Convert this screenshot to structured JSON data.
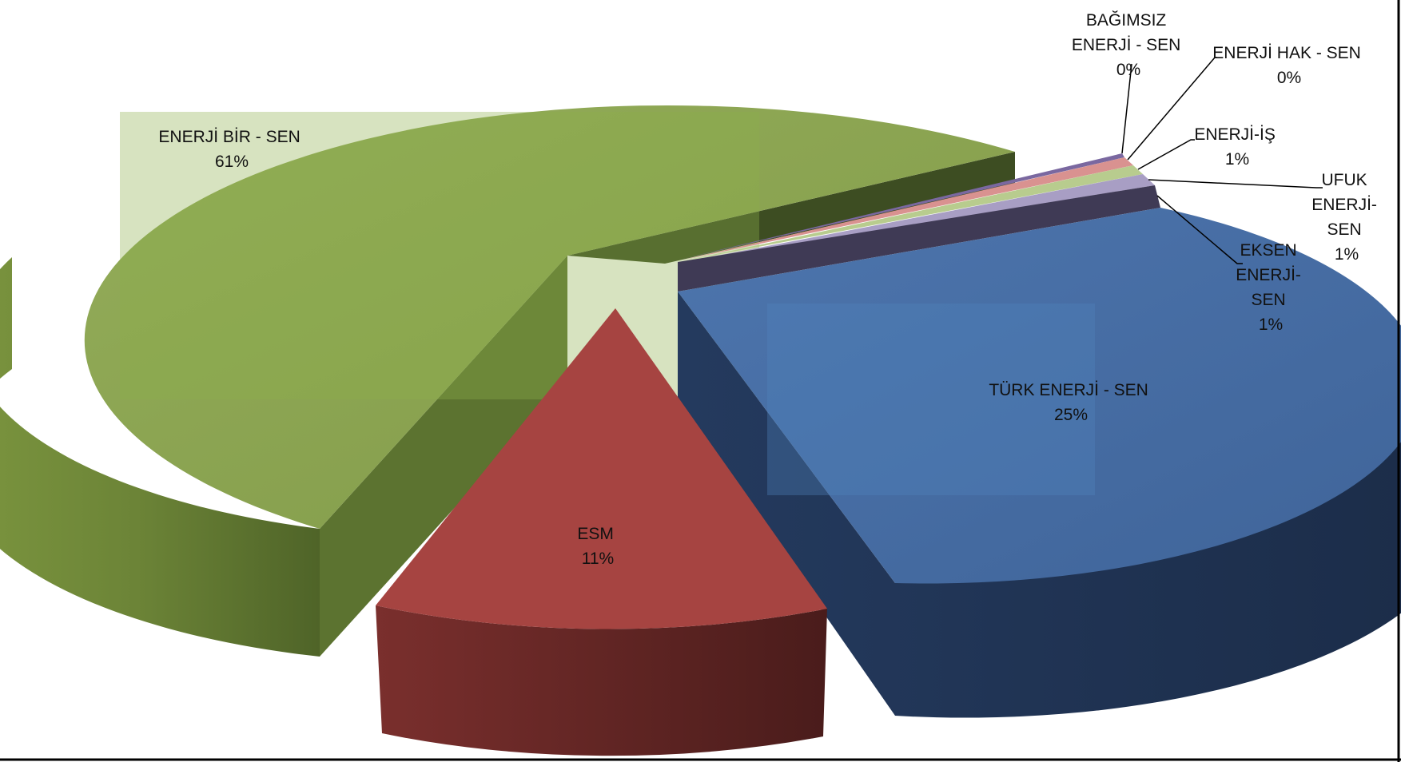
{
  "chart_data": {
    "type": "pie",
    "style": "3d-exploded",
    "slices": [
      {
        "label": "ENERJİ BİR - SEN",
        "percent_label": "61%",
        "value": 61,
        "color": "#8aa34f"
      },
      {
        "label": "ESM",
        "percent_label": "11%",
        "value": 11,
        "color": "#a64441"
      },
      {
        "label": "TÜRK ENERJİ - SEN",
        "percent_label": "25%",
        "value": 25,
        "color": "#4a70a8"
      },
      {
        "label": "EKSEN ENERJİ-SEN",
        "percent_label": "1%",
        "value": 1,
        "color": "#3f3a55"
      },
      {
        "label": "UFUK ENERJİ-SEN",
        "percent_label": "1%",
        "value": 1,
        "color": "#a89ec4"
      },
      {
        "label": "ENERJİ-İŞ",
        "percent_label": "1%",
        "value": 1,
        "color": "#b8cc8e"
      },
      {
        "label": "ENERJİ HAK - SEN",
        "percent_label": "0%",
        "value": 0.4,
        "color": "#d99290"
      },
      {
        "label": "BAĞIMSIZ ENERJİ - SEN",
        "percent_label": "0%",
        "value": 0.3,
        "color": "#7a68a0"
      }
    ],
    "legend": "none",
    "labels": "on-slice and leader lines"
  },
  "labels": {
    "birsen": {
      "l1": "ENERJİ BİR - SEN",
      "l2": "61%"
    },
    "esm": {
      "l1": "ESM",
      "l2": "11%"
    },
    "turk": {
      "l1": "TÜRK ENERJİ - SEN",
      "l2": "25%"
    },
    "eksen": {
      "l1": "EKSEN",
      "l2": "ENERJİ-",
      "l3": "SEN",
      "l4": "1%"
    },
    "ufuk": {
      "l1": "UFUK",
      "l2": "ENERJİ-",
      "l3": "SEN",
      "l4": "1%"
    },
    "enerjiis": {
      "l1": "ENERJİ-İŞ",
      "l2": "1%"
    },
    "hak": {
      "l1": "ENERJİ HAK -  SEN",
      "l2": "0%"
    },
    "bagimsiz": {
      "l1": "BAĞIMSIZ",
      "l2": "ENERJİ - SEN",
      "l3": "0%"
    }
  }
}
